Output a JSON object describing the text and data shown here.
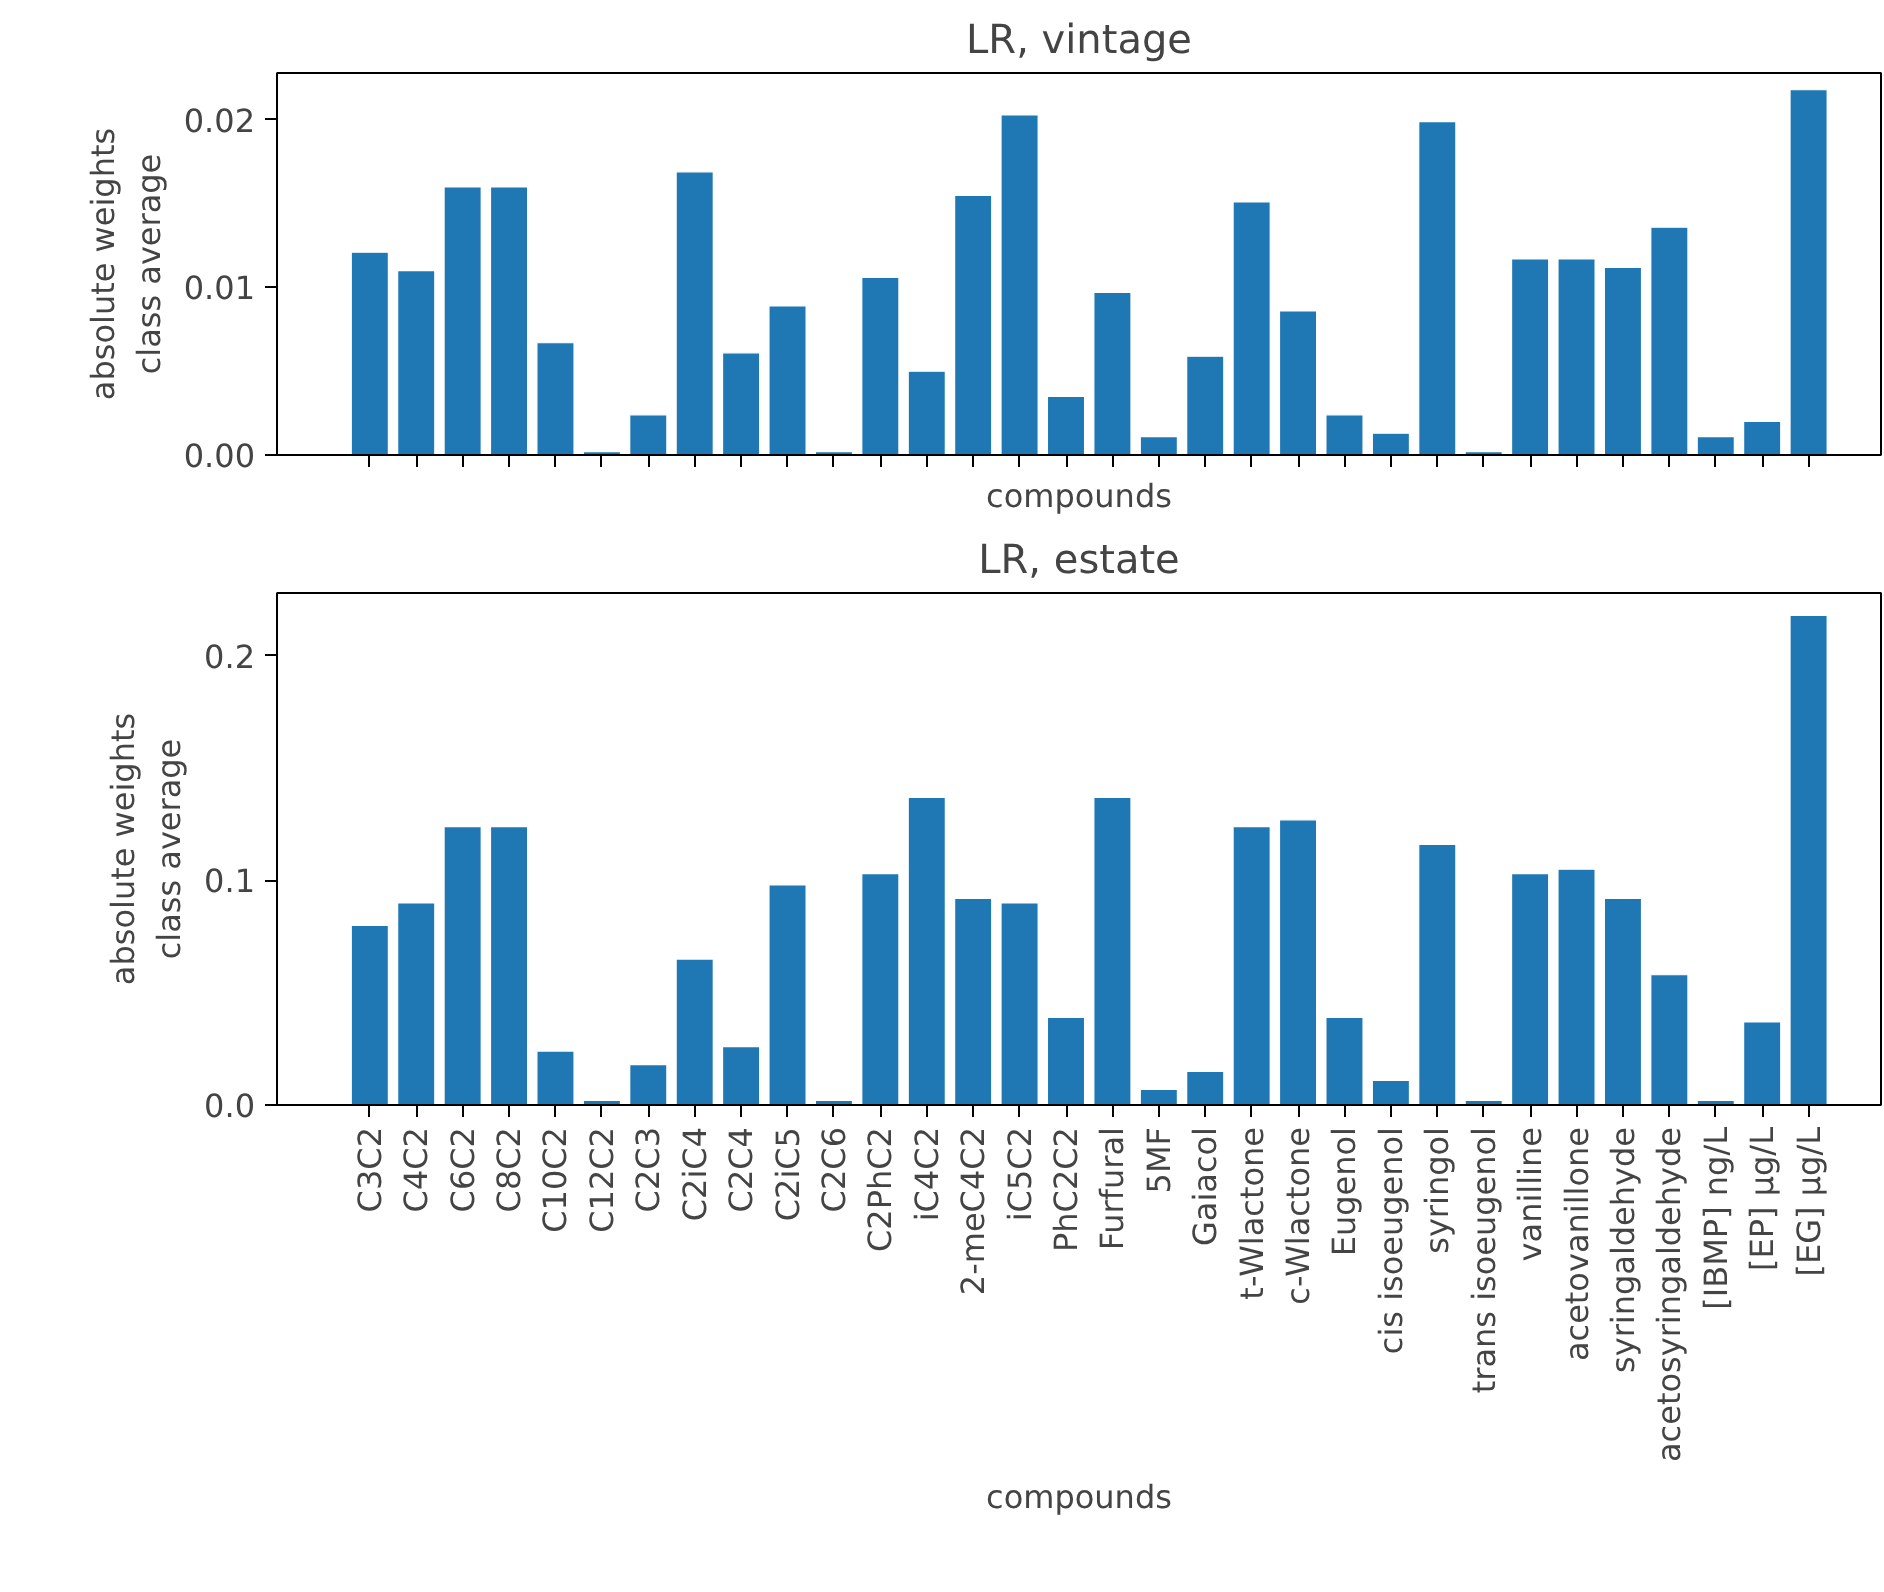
{
  "chart_data": [
    {
      "type": "bar",
      "title": "LR, vintage",
      "xlabel": "compounds",
      "ylabel": "absolute weights\nclass average",
      "values": [
        0.0121,
        0.011,
        0.016,
        0.016,
        0.0067,
        0.0002,
        0.0024,
        0.0169,
        0.0061,
        0.0089,
        0.0002,
        0.0106,
        0.005,
        0.0155,
        0.0203,
        0.0035,
        0.0097,
        0.0011,
        0.0059,
        0.0151,
        0.0086,
        0.0024,
        0.0013,
        0.0199,
        0.0002,
        0.0117,
        0.0117,
        0.0112,
        0.0136,
        0.0011,
        0.002,
        0.0218
      ],
      "color": "#1f77b4",
      "ylim": [
        0,
        0.0228
      ],
      "yticks": [
        {
          "value": 0,
          "label": "0.00"
        },
        {
          "value": 0.01,
          "label": "0.01"
        },
        {
          "value": 0.02,
          "label": "0.02"
        }
      ],
      "tick_labels": "y",
      "grid": false
    },
    {
      "type": "bar",
      "title": "LR, estate",
      "xlabel": "compounds",
      "ylabel": "absolute weights\nclass average",
      "categories": [
        "C3C2",
        "C4C2",
        "C6C2",
        "C8C2",
        "C10C2",
        "C12C2",
        "C2C3",
        "C2iC4",
        "C2C4",
        "C2iC5",
        "C2C6",
        "C2PhC2",
        "iC4C2",
        "2-meC4C2",
        "iC5C2",
        "PhC2C2",
        "Furfural",
        "5MF",
        "Gaiacol",
        "t-Wlactone",
        "c-Wlactone",
        "Eugenol",
        "cis isoeugenol",
        "syringol",
        "trans isoeugenol",
        "vanilline",
        "acetovanillone",
        "syringaldehyde",
        "acetosyringaldehyde",
        "[IBMP] ng/L",
        "[EP] µg/L",
        "[EG] µg/L"
      ],
      "values": [
        0.08,
        0.09,
        0.124,
        0.124,
        0.024,
        0.002,
        0.018,
        0.065,
        0.026,
        0.098,
        0.002,
        0.103,
        0.137,
        0.092,
        0.09,
        0.039,
        0.137,
        0.007,
        0.015,
        0.124,
        0.127,
        0.039,
        0.011,
        0.116,
        0.002,
        0.103,
        0.105,
        0.092,
        0.058,
        0.002,
        0.037,
        0.218
      ],
      "color": "#1f77b4",
      "ylim": [
        0,
        0.228
      ],
      "yticks": [
        {
          "value": 0,
          "label": "0.0"
        },
        {
          "value": 0.1,
          "label": "0.1"
        },
        {
          "value": 0.2,
          "label": "0.2"
        }
      ],
      "grid": false
    }
  ]
}
